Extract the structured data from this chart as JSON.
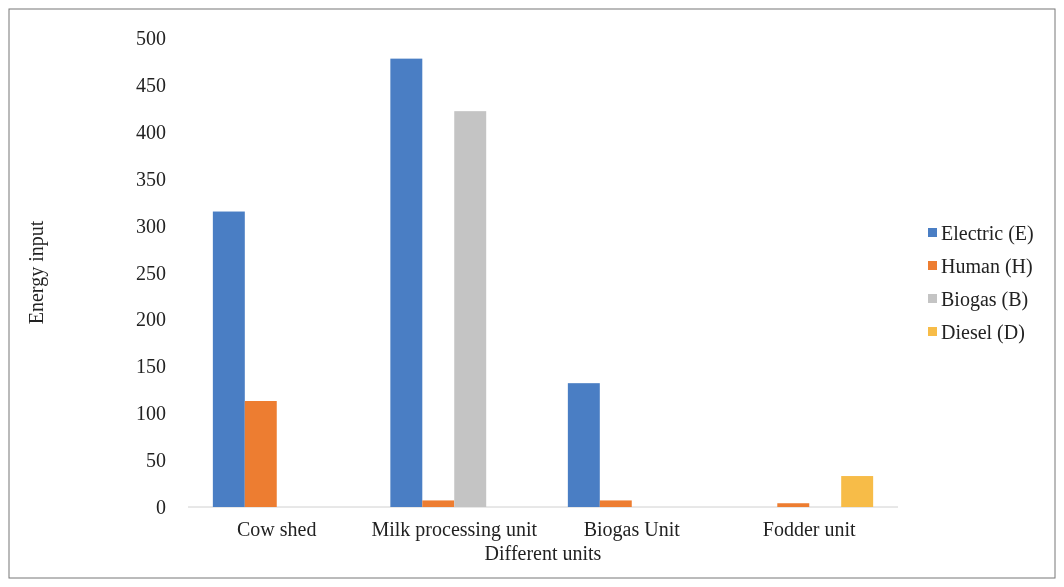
{
  "chart_data": {
    "type": "bar",
    "xlabel": "Different units",
    "ylabel": "Energy input",
    "categories": [
      "Cow shed",
      "Milk processing unit",
      "Biogas Unit",
      "Fodder unit"
    ],
    "series": [
      {
        "name": "Electric (E)",
        "color": "#4a7ec4",
        "values": [
          315,
          478,
          132,
          null
        ]
      },
      {
        "name": "Human (H)",
        "color": "#ed7d31",
        "values": [
          113,
          7,
          7,
          4
        ]
      },
      {
        "name": "Biogas (B)",
        "color": "#c4c4c4",
        "values": [
          null,
          422,
          null,
          null
        ]
      },
      {
        "name": "Diesel (D)",
        "color": "#f7bc48",
        "values": [
          null,
          null,
          null,
          33
        ]
      }
    ],
    "ylim": [
      0,
      500
    ],
    "yticks": [
      0,
      50,
      100,
      150,
      200,
      250,
      300,
      350,
      400,
      450,
      500
    ],
    "grid": false,
    "legend": "right"
  }
}
